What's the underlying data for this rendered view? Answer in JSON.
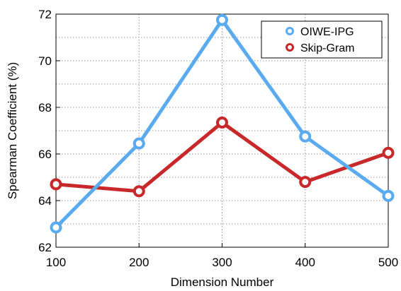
{
  "chart_data": {
    "type": "line",
    "title": "",
    "xlabel": "Dimension Number",
    "ylabel": "Spearman Coefficient (%)",
    "x": [
      100,
      200,
      300,
      400,
      500
    ],
    "xlim": [
      100,
      500
    ],
    "ylim": [
      62,
      72
    ],
    "xticks": [
      "100",
      "200",
      "300",
      "400",
      "500"
    ],
    "yticks": [
      "62",
      "64",
      "66",
      "68",
      "70",
      "72"
    ],
    "yminor_gridlines": [
      63,
      65,
      67,
      69,
      71
    ],
    "grid": true,
    "legend_position": "top-right",
    "series": [
      {
        "name": "OIWE-IPG",
        "color": "#5aaaf0",
        "values": [
          62.85,
          66.45,
          71.75,
          66.75,
          64.2
        ]
      },
      {
        "name": "Skip-Gram",
        "color": "#c8282a",
        "values": [
          64.7,
          64.4,
          67.35,
          64.8,
          66.05
        ]
      }
    ]
  }
}
